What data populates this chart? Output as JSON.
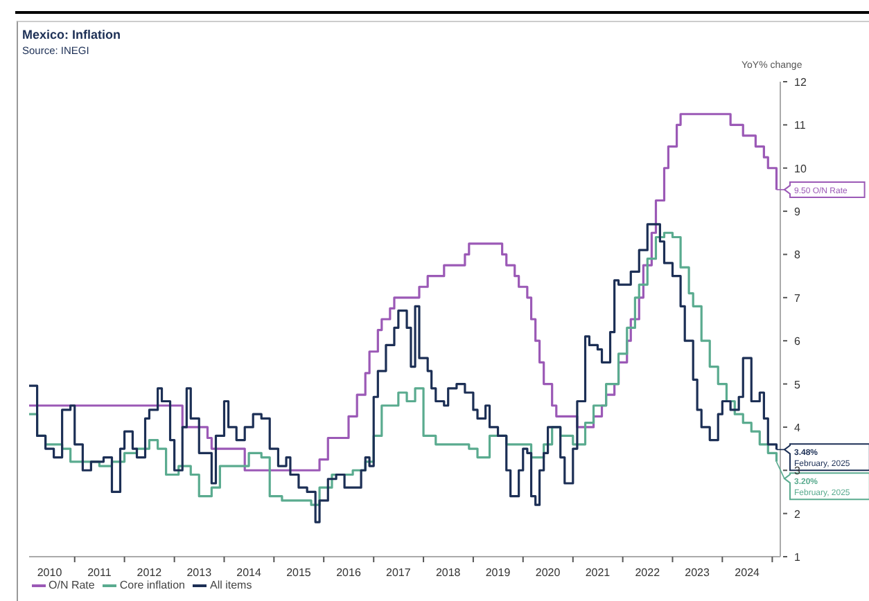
{
  "chart_data": {
    "type": "step",
    "title": "Mexico: Inflation",
    "ylabel": "YoY% change",
    "annotations": [
      "Source: INEGI",
      {
        "text": "9.50 O/N Rate",
        "x": "2025-02",
        "y": 9.5
      },
      {
        "text": "3.48% February, 2025",
        "x": "2025-02",
        "y": 3.48
      },
      {
        "text": "3.20% February, 2025",
        "x": "2025-02",
        "y": 3.2
      }
    ],
    "series": [
      {
        "name": "O/N Rate",
        "color": "#9b59b6",
        "x": [
          "2010-02",
          "2013-03",
          "2013-09",
          "2013-10",
          "2014-06",
          "2015-12",
          "2016-02",
          "2016-07",
          "2016-09",
          "2016-11",
          "2016-12",
          "2017-02",
          "2017-03",
          "2017-05",
          "2017-06",
          "2017-12",
          "2018-02",
          "2018-06",
          "2018-11",
          "2018-12",
          "2019-08",
          "2019-09",
          "2019-11",
          "2019-12",
          "2020-02",
          "2020-03",
          "2020-04",
          "2020-05",
          "2020-06",
          "2020-08",
          "2020-09",
          "2021-02",
          "2021-06",
          "2021-08",
          "2021-09",
          "2021-11",
          "2021-12",
          "2022-02",
          "2022-03",
          "2022-05",
          "2022-06",
          "2022-08",
          "2022-09",
          "2022-11",
          "2022-12",
          "2023-02",
          "2023-03",
          "2024-03",
          "2024-06",
          "2024-09",
          "2024-11",
          "2024-12",
          "2025-02"
        ],
        "values": [
          4.5,
          4.0,
          3.75,
          3.5,
          3.0,
          3.25,
          3.75,
          4.25,
          4.75,
          5.25,
          5.75,
          6.25,
          6.5,
          6.75,
          7.0,
          7.25,
          7.5,
          7.75,
          8.0,
          8.25,
          8.0,
          7.75,
          7.5,
          7.25,
          7.0,
          6.5,
          6.0,
          5.5,
          5.0,
          4.5,
          4.25,
          4.0,
          4.25,
          4.5,
          4.75,
          5.0,
          5.5,
          6.0,
          6.5,
          7.0,
          7.75,
          8.5,
          9.25,
          10.0,
          10.5,
          11.0,
          11.25,
          11.0,
          10.75,
          10.5,
          10.25,
          10.0,
          9.5
        ]
      },
      {
        "name": "Core inflation",
        "color": "#5aab8f",
        "x": [
          "2010-02",
          "2010-04",
          "2010-06",
          "2010-10",
          "2010-12",
          "2011-03",
          "2011-07",
          "2011-10",
          "2012-01",
          "2012-04",
          "2012-07",
          "2012-09",
          "2012-11",
          "2013-02",
          "2013-05",
          "2013-07",
          "2013-10",
          "2013-12",
          "2014-03",
          "2014-07",
          "2014-10",
          "2014-12",
          "2015-03",
          "2015-07",
          "2015-10",
          "2015-12",
          "2016-03",
          "2016-08",
          "2016-11",
          "2017-01",
          "2017-03",
          "2017-07",
          "2017-09",
          "2017-11",
          "2018-01",
          "2018-04",
          "2018-08",
          "2018-12",
          "2019-02",
          "2019-05",
          "2019-09",
          "2020-01",
          "2020-03",
          "2020-06",
          "2020-08",
          "2020-10",
          "2021-01",
          "2021-04",
          "2021-06",
          "2021-09",
          "2021-12",
          "2022-02",
          "2022-04",
          "2022-05",
          "2022-07",
          "2022-09",
          "2022-11",
          "2023-01",
          "2023-03",
          "2023-05",
          "2023-06",
          "2023-08",
          "2023-10",
          "2023-12",
          "2024-02",
          "2024-04",
          "2024-06",
          "2024-08",
          "2024-10",
          "2024-12",
          "2025-02"
        ],
        "values": [
          4.3,
          3.8,
          3.6,
          3.5,
          3.2,
          3.2,
          3.1,
          3.2,
          3.4,
          3.5,
          3.7,
          3.5,
          2.9,
          3.1,
          2.9,
          2.4,
          2.6,
          3.1,
          3.1,
          3.4,
          3.3,
          2.4,
          2.3,
          2.3,
          2.2,
          2.6,
          2.9,
          3.0,
          3.2,
          3.8,
          4.5,
          4.8,
          4.6,
          4.9,
          3.8,
          3.6,
          3.6,
          3.5,
          3.3,
          3.8,
          3.6,
          3.6,
          3.3,
          3.6,
          4.0,
          3.8,
          3.6,
          4.1,
          4.5,
          5.0,
          5.7,
          6.3,
          7.0,
          7.3,
          7.9,
          8.4,
          8.5,
          8.4,
          7.7,
          7.1,
          6.8,
          6.0,
          5.4,
          5.0,
          4.6,
          4.3,
          4.1,
          3.9,
          3.6,
          3.4,
          3.2
        ]
      },
      {
        "name": "All items",
        "color": "#1c2f55",
        "x": [
          "2010-02",
          "2010-04",
          "2010-06",
          "2010-08",
          "2010-10",
          "2010-12",
          "2011-01",
          "2011-03",
          "2011-05",
          "2011-08",
          "2011-10",
          "2011-12",
          "2012-01",
          "2012-03",
          "2012-04",
          "2012-06",
          "2012-07",
          "2012-09",
          "2012-10",
          "2012-12",
          "2013-01",
          "2013-03",
          "2013-04",
          "2013-05",
          "2013-07",
          "2013-10",
          "2013-11",
          "2014-01",
          "2014-02",
          "2014-04",
          "2014-06",
          "2014-08",
          "2014-10",
          "2014-12",
          "2015-02",
          "2015-04",
          "2015-05",
          "2015-07",
          "2015-09",
          "2015-11",
          "2015-12",
          "2016-02",
          "2016-04",
          "2016-06",
          "2016-08",
          "2016-10",
          "2016-11",
          "2016-12",
          "2017-01",
          "2017-02",
          "2017-04",
          "2017-06",
          "2017-07",
          "2017-09",
          "2017-10",
          "2017-11",
          "2017-12",
          "2018-02",
          "2018-03",
          "2018-04",
          "2018-06",
          "2018-07",
          "2018-09",
          "2018-11",
          "2019-01",
          "2019-02",
          "2019-04",
          "2019-05",
          "2019-07",
          "2019-09",
          "2019-10",
          "2019-12",
          "2020-01",
          "2020-02",
          "2020-03",
          "2020-04",
          "2020-05",
          "2020-06",
          "2020-07",
          "2020-09",
          "2020-10",
          "2020-11",
          "2021-01",
          "2021-02",
          "2021-04",
          "2021-05",
          "2021-07",
          "2021-08",
          "2021-10",
          "2021-11",
          "2021-12",
          "2022-02",
          "2022-03",
          "2022-05",
          "2022-07",
          "2022-08",
          "2022-10",
          "2022-11",
          "2023-01",
          "2023-03",
          "2023-04",
          "2023-06",
          "2023-07",
          "2023-08",
          "2023-10",
          "2023-12",
          "2024-01",
          "2024-03",
          "2024-05",
          "2024-06",
          "2024-08",
          "2024-10",
          "2024-11",
          "2024-12",
          "2025-02"
        ],
        "values": [
          4.96,
          3.8,
          3.5,
          3.3,
          4.4,
          4.5,
          3.6,
          3.0,
          3.2,
          3.3,
          2.5,
          3.5,
          3.9,
          3.5,
          3.3,
          4.2,
          4.4,
          4.9,
          4.6,
          3.7,
          3.0,
          4.0,
          4.9,
          4.2,
          3.4,
          2.7,
          3.8,
          4.6,
          4.0,
          3.7,
          4.0,
          4.3,
          4.2,
          3.5,
          3.1,
          3.3,
          2.9,
          2.6,
          2.5,
          1.8,
          2.3,
          2.8,
          2.9,
          2.6,
          2.6,
          3.0,
          3.3,
          3.1,
          4.7,
          5.3,
          5.9,
          6.3,
          6.7,
          6.3,
          5.4,
          6.8,
          5.6,
          5.3,
          4.9,
          4.6,
          4.5,
          4.9,
          5.0,
          4.8,
          4.4,
          4.2,
          4.5,
          4.0,
          3.8,
          3.0,
          2.4,
          3.0,
          3.5,
          3.4,
          2.4,
          2.2,
          3.0,
          3.4,
          4.0,
          4.0,
          3.3,
          2.7,
          3.5,
          4.6,
          6.1,
          5.9,
          5.8,
          5.5,
          6.2,
          7.4,
          7.3,
          7.3,
          7.6,
          8.1,
          8.7,
          8.7,
          8.3,
          7.8,
          7.5,
          6.8,
          6.0,
          5.1,
          4.4,
          4.0,
          3.7,
          4.3,
          4.6,
          4.4,
          4.7,
          5.6,
          4.6,
          4.8,
          4.2,
          3.6,
          3.48
        ]
      }
    ],
    "xlim": [
      "2010-02",
      "2025-03"
    ],
    "xticks": [
      {
        "value": "2010-07",
        "label": "2010"
      },
      {
        "value": "2011-07",
        "label": "2011"
      },
      {
        "value": "2012-07",
        "label": "2012"
      },
      {
        "value": "2013-07",
        "label": "2013"
      },
      {
        "value": "2014-07",
        "label": "2014"
      },
      {
        "value": "2015-07",
        "label": "2015"
      },
      {
        "value": "2016-07",
        "label": "2016"
      },
      {
        "value": "2017-07",
        "label": "2017"
      },
      {
        "value": "2018-07",
        "label": "2018"
      },
      {
        "value": "2019-07",
        "label": "2019"
      },
      {
        "value": "2020-07",
        "label": "2020"
      },
      {
        "value": "2021-07",
        "label": "2021"
      },
      {
        "value": "2022-07",
        "label": "2022"
      },
      {
        "value": "2023-07",
        "label": "2023"
      },
      {
        "value": "2024-07",
        "label": "2024"
      },
      {
        "value": "2011-01",
        "label": null
      },
      {
        "value": "2012-01",
        "label": null
      },
      {
        "value": "2013-01",
        "label": null
      },
      {
        "value": "2014-01",
        "label": null
      },
      {
        "value": "2015-01",
        "label": null
      },
      {
        "value": "2016-01",
        "label": null
      },
      {
        "value": "2017-01",
        "label": null
      },
      {
        "value": "2018-01",
        "label": null
      },
      {
        "value": "2019-01",
        "label": null
      },
      {
        "value": "2020-01",
        "label": null
      },
      {
        "value": "2021-01",
        "label": null
      },
      {
        "value": "2022-01",
        "label": null
      },
      {
        "value": "2023-01",
        "label": null
      },
      {
        "value": "2024-01",
        "label": null
      },
      {
        "value": "2025-01",
        "label": null
      }
    ],
    "ylim": [
      1,
      12
    ],
    "yticks": [
      1,
      2,
      3,
      4,
      5,
      6,
      7,
      8,
      9,
      10,
      11,
      12
    ],
    "legend": "bottom left",
    "grid": false,
    "marker": "none"
  }
}
